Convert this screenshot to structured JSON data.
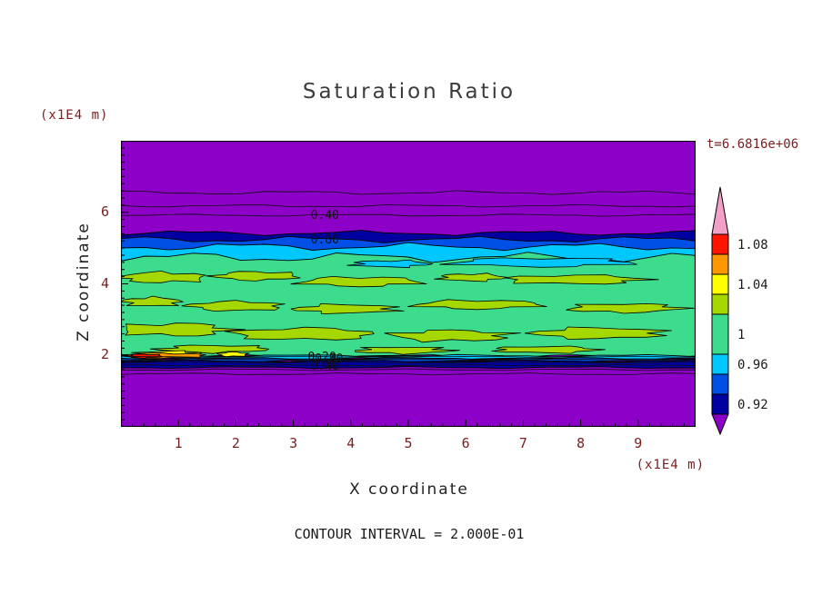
{
  "title": "Saturation Ratio",
  "header": {
    "y_unit": "(x1E4 m)",
    "time_label": "t=6.6816e+06"
  },
  "axes": {
    "x_label": "X coordinate",
    "y_label": "Z coordinate",
    "x_unit": "(x1E4 m)",
    "x_ticks": [
      "1",
      "2",
      "3",
      "4",
      "5",
      "6",
      "7",
      "8",
      "9"
    ],
    "y_ticks": [
      "6",
      "4",
      "2"
    ]
  },
  "footer": {
    "contour_interval": "CONTOUR INTERVAL = 2.000E-01"
  },
  "chart_data": {
    "type": "contour",
    "title": "Saturation Ratio",
    "xlabel": "X coordinate",
    "ylabel": "Z coordinate",
    "x_unit": "(x1E4 m)",
    "y_unit": "(x1E4 m)",
    "time_label": "t=6.6816e+06",
    "contour_interval": 0.2,
    "xlim": [
      0,
      10
    ],
    "ylim": [
      0,
      8
    ],
    "xticks": [
      1,
      2,
      3,
      4,
      5,
      6,
      7,
      8,
      9
    ],
    "yticks": [
      2,
      4,
      6
    ],
    "colorbar": {
      "labels": [
        "1.08",
        "1.04",
        "1",
        "0.96",
        "0.92"
      ],
      "colors_top_to_bottom": [
        "#F2A0C8",
        "#FF1400",
        "#FF9800",
        "#FFFF00",
        "#A4D800",
        "#3CDC8C",
        "#00C8FF",
        "#0050E6",
        "#0000A0",
        "#8C00C8"
      ]
    },
    "field_bands": [
      {
        "color": "#8C00C8",
        "base": true
      },
      {
        "color": "#0000A0",
        "z_top": 5.42,
        "z_bottom": 4.95,
        "amp_top": 2,
        "amp_bottom": 3,
        "seed": 1
      },
      {
        "color": "#0050E6",
        "z_top": 5.24,
        "z_bottom": 4.76,
        "amp_top": 2.5,
        "amp_bottom": 4,
        "seed": 2
      },
      {
        "color": "#00C8FF",
        "z_top": 5.04,
        "z_bottom": 4.46,
        "amp_top": 3,
        "amp_bottom": 5,
        "seed": 3
      },
      {
        "color": "#3CDC8C",
        "z_top": 4.74,
        "z_bottom": 1.98,
        "amp_top": 4,
        "amp_bottom": 1.2,
        "seed": 4
      },
      {
        "color": "#00C8FF",
        "z_top": 1.99,
        "z_bottom": 1.9,
        "amp_top": 1,
        "amp_bottom": 0.8,
        "seed": 5
      },
      {
        "color": "#0050E6",
        "z_top": 1.91,
        "z_bottom": 1.83,
        "amp_top": 0.8,
        "amp_bottom": 0.8,
        "seed": 6
      },
      {
        "color": "#0000A0",
        "z_top": 1.84,
        "z_bottom": 1.66,
        "amp_top": 0.8,
        "amp_bottom": 0.8,
        "seed": 7
      }
    ],
    "blobs": [
      {
        "x": 0.7,
        "z": 4.18,
        "rx": 0.75,
        "ry": 0.14,
        "seed": 11,
        "color": "#A4D800"
      },
      {
        "x": 2.35,
        "z": 4.22,
        "rx": 0.7,
        "ry": 0.12,
        "seed": 12,
        "color": "#A4D800"
      },
      {
        "x": 4.15,
        "z": 4.06,
        "rx": 1.0,
        "ry": 0.13,
        "seed": 13,
        "color": "#A4D800"
      },
      {
        "x": 6.1,
        "z": 4.18,
        "rx": 0.55,
        "ry": 0.1,
        "seed": 14,
        "color": "#A4D800"
      },
      {
        "x": 7.9,
        "z": 4.12,
        "rx": 1.2,
        "ry": 0.12,
        "seed": 15,
        "color": "#A4D800"
      },
      {
        "x": 0.55,
        "z": 3.5,
        "rx": 0.5,
        "ry": 0.12,
        "seed": 16,
        "color": "#A4D800"
      },
      {
        "x": 2.0,
        "z": 3.38,
        "rx": 0.8,
        "ry": 0.13,
        "seed": 17,
        "color": "#A4D800"
      },
      {
        "x": 3.9,
        "z": 3.3,
        "rx": 0.85,
        "ry": 0.12,
        "seed": 18,
        "color": "#A4D800"
      },
      {
        "x": 6.2,
        "z": 3.42,
        "rx": 1.05,
        "ry": 0.12,
        "seed": 19,
        "color": "#A4D800"
      },
      {
        "x": 8.75,
        "z": 3.32,
        "rx": 0.95,
        "ry": 0.12,
        "seed": 20,
        "color": "#A4D800"
      },
      {
        "x": 0.95,
        "z": 2.72,
        "rx": 0.95,
        "ry": 0.17,
        "seed": 21,
        "color": "#A4D800"
      },
      {
        "x": 3.2,
        "z": 2.6,
        "rx": 1.25,
        "ry": 0.16,
        "seed": 22,
        "color": "#A4D800"
      },
      {
        "x": 5.75,
        "z": 2.55,
        "rx": 1.0,
        "ry": 0.15,
        "seed": 23,
        "color": "#A4D800"
      },
      {
        "x": 8.3,
        "z": 2.62,
        "rx": 1.1,
        "ry": 0.15,
        "seed": 24,
        "color": "#A4D800"
      },
      {
        "x": 1.6,
        "z": 2.18,
        "rx": 0.9,
        "ry": 0.1,
        "seed": 25,
        "color": "#A4D800"
      },
      {
        "x": 4.9,
        "z": 2.14,
        "rx": 0.8,
        "ry": 0.09,
        "seed": 26,
        "color": "#A4D800"
      },
      {
        "x": 7.4,
        "z": 2.16,
        "rx": 0.9,
        "ry": 0.09,
        "seed": 27,
        "color": "#A4D800"
      },
      {
        "x": 7.3,
        "z": 4.6,
        "rx": 1.5,
        "ry": 0.12,
        "seed": 32,
        "color": "#00C8FF"
      },
      {
        "x": 4.7,
        "z": 4.56,
        "rx": 0.65,
        "ry": 0.09,
        "seed": 33,
        "color": "#00C8FF"
      },
      {
        "x": 0.85,
        "z": 2.04,
        "rx": 0.55,
        "ry": 0.08,
        "seed": 28,
        "color": "#FFFF00"
      },
      {
        "x": 1.95,
        "z": 2.03,
        "rx": 0.25,
        "ry": 0.06,
        "seed": 29,
        "color": "#FFFF00"
      },
      {
        "x": 0.7,
        "z": 1.99,
        "rx": 0.75,
        "ry": 0.07,
        "seed": 30,
        "color": "#FF9800"
      },
      {
        "x": 0.4,
        "z": 1.98,
        "rx": 0.3,
        "ry": 0.05,
        "seed": 31,
        "color": "#FF1400"
      }
    ],
    "contour_lines": [
      {
        "z": 6.55,
        "amp": 1.5,
        "seed": 41
      },
      {
        "z": 6.18,
        "amp": 1.0,
        "seed": 42
      },
      {
        "z": 5.92,
        "amp": 0.9,
        "seed": 43
      },
      {
        "z": 1.96,
        "amp": 0.5,
        "seed": 44
      },
      {
        "z": 1.88,
        "amp": 0.5,
        "seed": 45
      },
      {
        "z": 1.8,
        "amp": 0.5,
        "seed": 46
      },
      {
        "z": 1.72,
        "amp": 0.5,
        "seed": 47
      },
      {
        "z": 1.6,
        "amp": 0.7,
        "seed": 48
      },
      {
        "z": 1.48,
        "amp": 0.8,
        "seed": 49
      }
    ],
    "contour_labels": [
      {
        "text": "0.40",
        "x": 3.55,
        "z": 5.92
      },
      {
        "text": "0.80",
        "x": 3.55,
        "z": 5.23
      },
      {
        "text": "0.20",
        "x": 3.5,
        "z": 1.95
      },
      {
        "text": "0.80",
        "x": 3.62,
        "z": 1.9
      },
      {
        "text": "0.40",
        "x": 3.55,
        "z": 1.7
      }
    ]
  }
}
